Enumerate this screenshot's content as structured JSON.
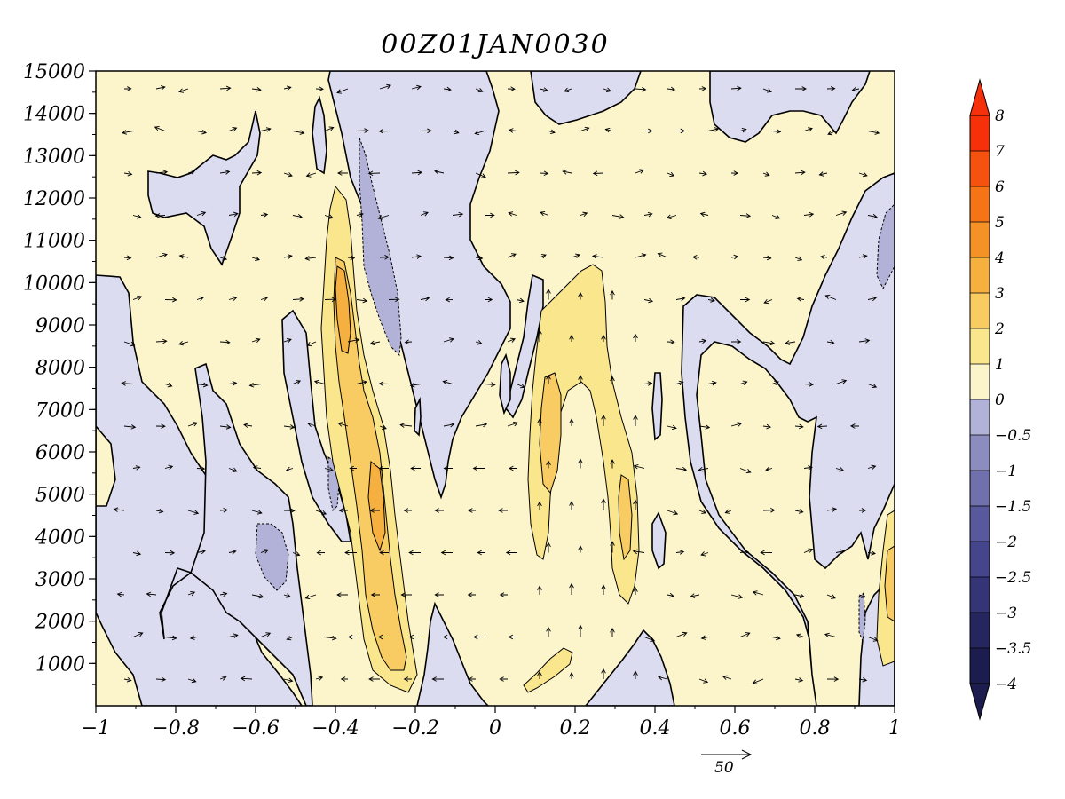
{
  "chart_data": {
    "type": "contour",
    "title": "00Z01JAN0030",
    "xlabel": "",
    "ylabel": "",
    "xlim": [
      -1,
      1
    ],
    "ylim": [
      0,
      15000
    ],
    "x_ticks": [
      -1,
      -0.8,
      -0.6,
      -0.4,
      -0.2,
      0,
      0.2,
      0.4,
      0.6,
      0.8,
      1
    ],
    "x_tick_labels": [
      "−1",
      "−0.8",
      "−0.6",
      "−0.4",
      "−0.2",
      "0",
      "0.2",
      "0.4",
      "0.6",
      "0.8",
      "1"
    ],
    "y_ticks": [
      1000,
      2000,
      3000,
      4000,
      5000,
      6000,
      7000,
      8000,
      9000,
      10000,
      11000,
      12000,
      13000,
      14000,
      15000
    ],
    "y_tick_labels": [
      "1000",
      "2000",
      "3000",
      "4000",
      "5000",
      "6000",
      "7000",
      "8000",
      "9000",
      "10000",
      "11000",
      "12000",
      "13000",
      "14000",
      "15000"
    ],
    "colorbar": {
      "levels": [
        -4,
        -3.5,
        -3,
        -2.5,
        -2,
        -1.5,
        -1,
        -0.5,
        0,
        1,
        2,
        3,
        4,
        5,
        6,
        7,
        8
      ],
      "labels": [
        "−4",
        "−3.5",
        "−3",
        "−2.5",
        "−2",
        "−1.5",
        "−1",
        "−0.5",
        "0",
        "1",
        "2",
        "3",
        "4",
        "5",
        "6",
        "7",
        "8"
      ],
      "colors": [
        "#1c1c4e",
        "#26265e",
        "#343477",
        "#45458b",
        "#58589c",
        "#7070ad",
        "#8c8cbe",
        "#b2b2d8",
        "#dcdcf0",
        "#fcf5cc",
        "#fae68c",
        "#f8cc62",
        "#f5b040",
        "#f49228",
        "#f57418",
        "#f55210",
        "#f5300a"
      ],
      "extend": "both"
    },
    "vector_reference": {
      "value": "50"
    },
    "regions": [
      {
        "label": "positive maximum",
        "x_range": [
          -0.4,
          -0.25
        ],
        "y_range": [
          800,
          12300
        ],
        "max_level": 3
      },
      {
        "label": "positive maximum",
        "x_range": [
          0.1,
          0.35
        ],
        "y_range": [
          2500,
          10500
        ],
        "max_level": 2
      },
      {
        "label": "negative minimum",
        "x_range": [
          -0.35,
          -0.2
        ],
        "y_range": [
          8000,
          13400
        ],
        "min_level": -1
      },
      {
        "label": "negative minimum",
        "x_range": [
          -0.6,
          -0.5
        ],
        "y_range": [
          2800,
          4300
        ],
        "min_level": -1
      }
    ]
  }
}
